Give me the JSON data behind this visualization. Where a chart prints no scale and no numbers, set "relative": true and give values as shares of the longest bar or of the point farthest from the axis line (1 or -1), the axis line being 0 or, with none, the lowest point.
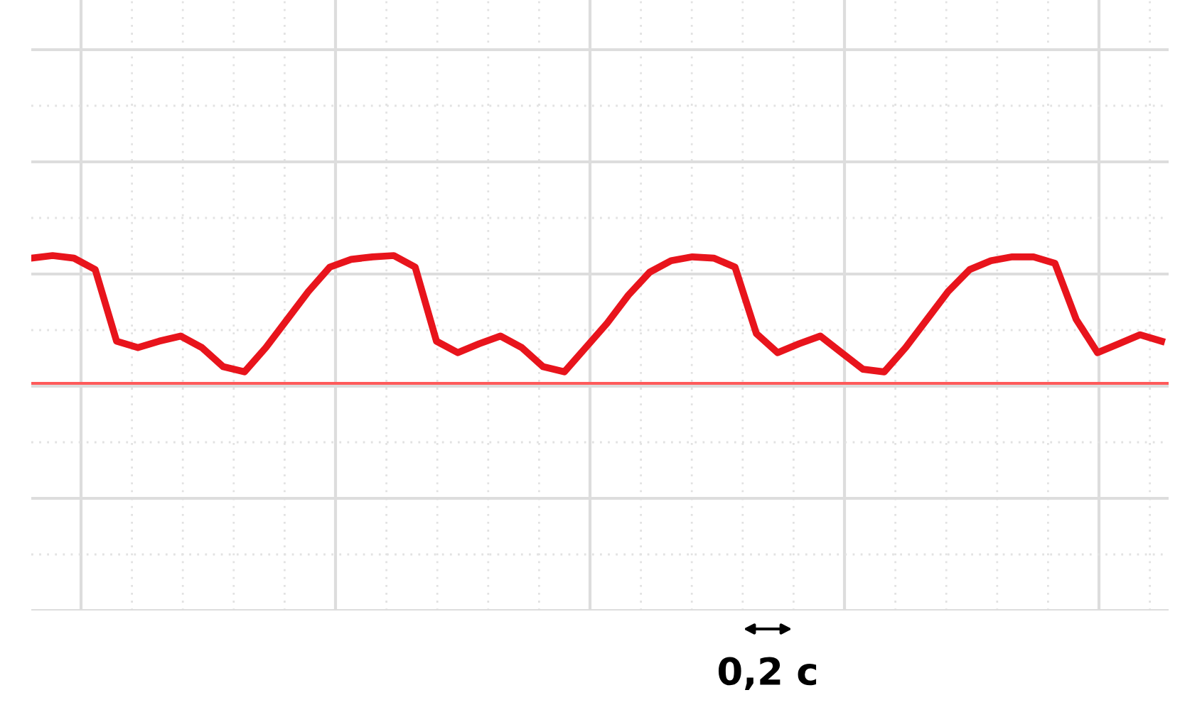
{
  "chart_data": {
    "type": "line",
    "relative": true,
    "categories": [
      null,
      null,
      null,
      null,
      null,
      null,
      null,
      null,
      null,
      null,
      null,
      null,
      null,
      null,
      null,
      null,
      null,
      null,
      null,
      null,
      null,
      null,
      null,
      null,
      null,
      null,
      null,
      null,
      null,
      null,
      null,
      null,
      null,
      null,
      null,
      null,
      null,
      null,
      null,
      null,
      null,
      null,
      null,
      null,
      null,
      null,
      null,
      null,
      null,
      null,
      null,
      null,
      null,
      null
    ],
    "series": [
      {
        "color": "#e8141c",
        "values": [
          0.98,
          1.0,
          0.98,
          0.89,
          0.33,
          0.28,
          0.33,
          0.37,
          0.28,
          0.13,
          0.09,
          0.28,
          0.5,
          0.72,
          0.91,
          0.97,
          0.99,
          1.0,
          0.91,
          0.33,
          0.24,
          0.31,
          0.37,
          0.28,
          0.13,
          0.09,
          0.28,
          0.47,
          0.69,
          0.87,
          0.96,
          0.99,
          0.98,
          0.91,
          0.39,
          0.24,
          0.31,
          0.37,
          0.24,
          0.11,
          0.09,
          0.28,
          0.5,
          0.72,
          0.89,
          0.96,
          0.99,
          0.99,
          0.94,
          0.5,
          0.24,
          0.31,
          0.38,
          0.33
        ]
      }
    ],
    "ref_lines": [
      {
        "axis": "y",
        "value": 0,
        "color": "#ff5a5a"
      }
    ],
    "annotations": [
      "0,2 с"
    ],
    "grid": true,
    "legend": false,
    "marker": "none",
    "line_style": "solid"
  }
}
